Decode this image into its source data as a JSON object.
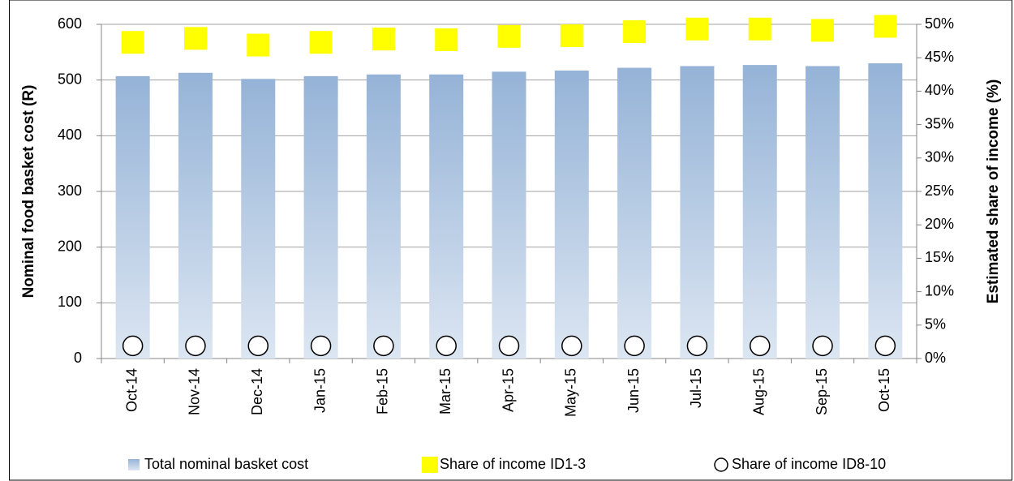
{
  "chart_data": {
    "type": "bar",
    "y_label": "Nominal food basket cost (R)",
    "y2_label": "Estimated share of income (%)",
    "categories": [
      "Oct-14",
      "Nov-14",
      "Dec-14",
      "Jan-15",
      "Feb-15",
      "Mar-15",
      "Apr-15",
      "May-15",
      "Jun-15",
      "Jul-15",
      "Aug-15",
      "Sep-15",
      "Oct-15"
    ],
    "series": [
      {
        "name": "Total nominal basket cost",
        "type": "bar",
        "color": "#95b3d7",
        "values": [
          507,
          513,
          502,
          507,
          510,
          510,
          515,
          517,
          522,
          525,
          527,
          525,
          530
        ]
      },
      {
        "name": "Share of income ID1-3",
        "type": "scatter",
        "marker": "square",
        "color": "#ffff00",
        "axis": "y2",
        "values": [
          47.3,
          47.9,
          46.9,
          47.3,
          47.8,
          47.7,
          48.2,
          48.3,
          48.9,
          49.3,
          49.3,
          49.1,
          49.7
        ]
      },
      {
        "name": "Share of income ID8-10",
        "type": "scatter",
        "marker": "circle",
        "color": "#ffffff",
        "axis": "y2",
        "values": [
          1.9,
          1.9,
          1.9,
          1.9,
          1.9,
          1.9,
          1.9,
          1.9,
          1.9,
          1.9,
          1.9,
          1.9,
          1.9
        ]
      }
    ],
    "ylim": [
      0,
      600
    ],
    "yticks": [
      0,
      100,
      200,
      300,
      400,
      500,
      600
    ],
    "y2lim": [
      0,
      50
    ],
    "y2ticks": [
      {
        "value": 0,
        "label": "0%"
      },
      {
        "value": 5,
        "label": "5%"
      },
      {
        "value": 10,
        "label": "10%"
      },
      {
        "value": 15,
        "label": "15%"
      },
      {
        "value": 20,
        "label": "20%"
      },
      {
        "value": 25,
        "label": "25%"
      },
      {
        "value": 30,
        "label": "30%"
      },
      {
        "value": 35,
        "label": "35%"
      },
      {
        "value": 40,
        "label": "40%"
      },
      {
        "value": 45,
        "label": "45%"
      },
      {
        "value": 50,
        "label": "50%"
      }
    ],
    "grid": true,
    "legend": "bottom"
  }
}
